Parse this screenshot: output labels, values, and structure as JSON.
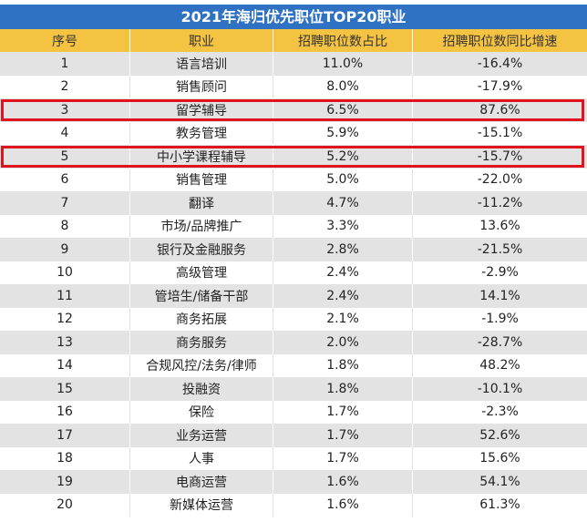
{
  "chart_data": {
    "type": "table",
    "title": "2021年海归优先职位TOP20职业",
    "columns": [
      "序号",
      "职业",
      "招聘职位数占比",
      "招聘职位数同比增速"
    ],
    "rows": [
      [
        "1",
        "语言培训",
        "11.0%",
        "-16.4%"
      ],
      [
        "2",
        "销售顾问",
        "8.0%",
        "-17.9%"
      ],
      [
        "3",
        "留学辅导",
        "6.5%",
        "87.6%"
      ],
      [
        "4",
        "教务管理",
        "5.9%",
        "-15.1%"
      ],
      [
        "5",
        "中小学课程辅导",
        "5.2%",
        "-15.7%"
      ],
      [
        "6",
        "销售管理",
        "5.0%",
        "-22.0%"
      ],
      [
        "7",
        "翻译",
        "4.7%",
        "-11.2%"
      ],
      [
        "8",
        "市场/品牌推广",
        "3.3%",
        "13.6%"
      ],
      [
        "9",
        "银行及金融服务",
        "2.8%",
        "-21.5%"
      ],
      [
        "10",
        "高级管理",
        "2.4%",
        "-2.9%"
      ],
      [
        "11",
        "管培生/储备干部",
        "2.4%",
        "14.1%"
      ],
      [
        "12",
        "商务拓展",
        "2.1%",
        "-1.9%"
      ],
      [
        "13",
        "商务服务",
        "2.0%",
        "-28.7%"
      ],
      [
        "14",
        "合规风控/法务/律师",
        "1.8%",
        "48.2%"
      ],
      [
        "15",
        "投融资",
        "1.8%",
        "-10.1%"
      ],
      [
        "16",
        "保险",
        "1.7%",
        "-2.3%"
      ],
      [
        "17",
        "业务运营",
        "1.7%",
        "52.6%"
      ],
      [
        "18",
        "人事",
        "1.7%",
        "15.6%"
      ],
      [
        "19",
        "电商运营",
        "1.6%",
        "54.1%"
      ],
      [
        "20",
        "新媒体运营",
        "1.6%",
        "61.3%"
      ]
    ],
    "highlighted_rows": [
      3,
      5
    ],
    "colors": {
      "title_bg": "#2f72c3",
      "header_bg": "#f5c342",
      "stripe_bg": "#e3e3e3",
      "highlight_border": "#e0141e"
    }
  }
}
